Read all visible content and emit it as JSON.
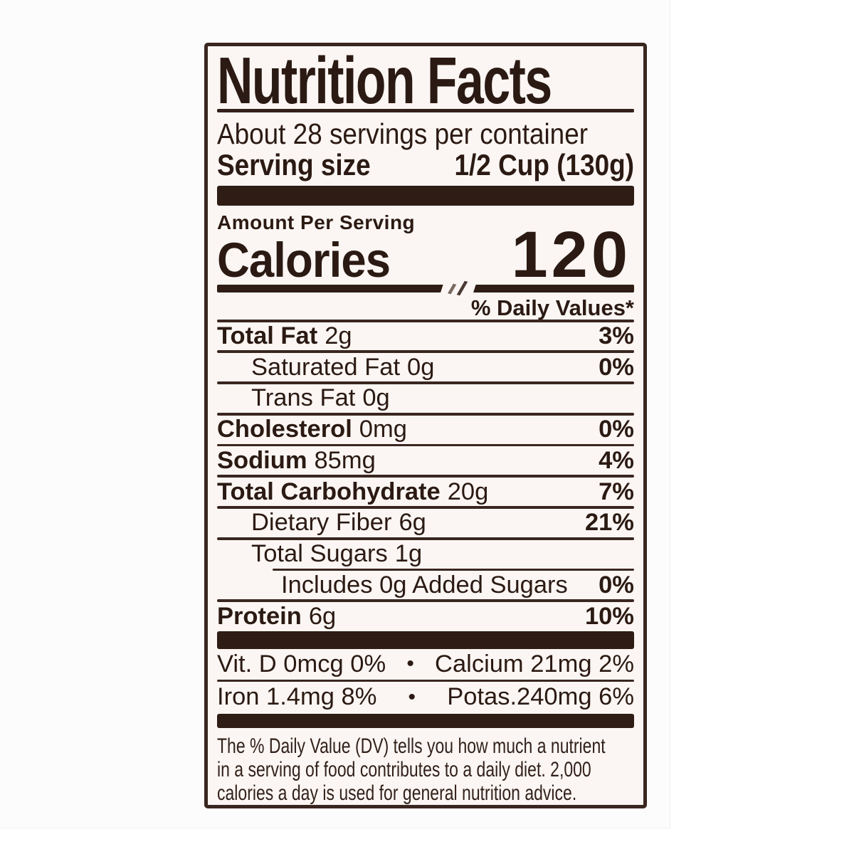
{
  "label": {
    "title": "Nutrition Facts",
    "servings_per_container": "About 28 servings per container",
    "serving_size_label": "Serving size",
    "serving_size_value": "1/2 Cup (130g)",
    "amount_per_serving": "Amount Per Serving",
    "calories_label": "Calories",
    "calories_value": "120",
    "daily_values_header": "% Daily Values*",
    "nutrients": [
      {
        "name": "Total Fat",
        "amount": "2g",
        "dv": "3%"
      },
      {
        "name": "Saturated Fat",
        "amount": "0g",
        "dv": "0%"
      },
      {
        "name": "Trans Fat",
        "amount": "0g",
        "dv": ""
      },
      {
        "name": "Cholesterol",
        "amount": "0mg",
        "dv": "0%"
      },
      {
        "name": "Sodium",
        "amount": "85mg",
        "dv": "4%"
      },
      {
        "name": "Total Carbohydrate",
        "amount": "20g",
        "dv": "7%"
      },
      {
        "name": "Dietary Fiber",
        "amount": "6g",
        "dv": "21%"
      },
      {
        "name": "Total Sugars",
        "amount": "1g",
        "dv": ""
      },
      {
        "name": "Includes 0g Added Sugars",
        "amount": "",
        "dv": "0%"
      },
      {
        "name": "Protein",
        "amount": "6g",
        "dv": "10%"
      }
    ],
    "bullet": "•",
    "micronutrients": [
      {
        "left": "Vit. D 0mcg 0%",
        "right": "Calcium 21mg 2%"
      },
      {
        "left": "Iron 1.4mg 8%",
        "right": "Potas.240mg 6%"
      }
    ],
    "footnote_lines": [
      "The % Daily Value (DV) tells you how much a nutrient",
      "in a serving of food contributes to a daily diet. 2,000",
      "calories a day is used for general nutrition advice."
    ]
  },
  "colors": {
    "ink": "#2b1a13",
    "bar": "#2e1c15",
    "label_background": "#fbf6f3",
    "page_background": "#ffffff"
  }
}
